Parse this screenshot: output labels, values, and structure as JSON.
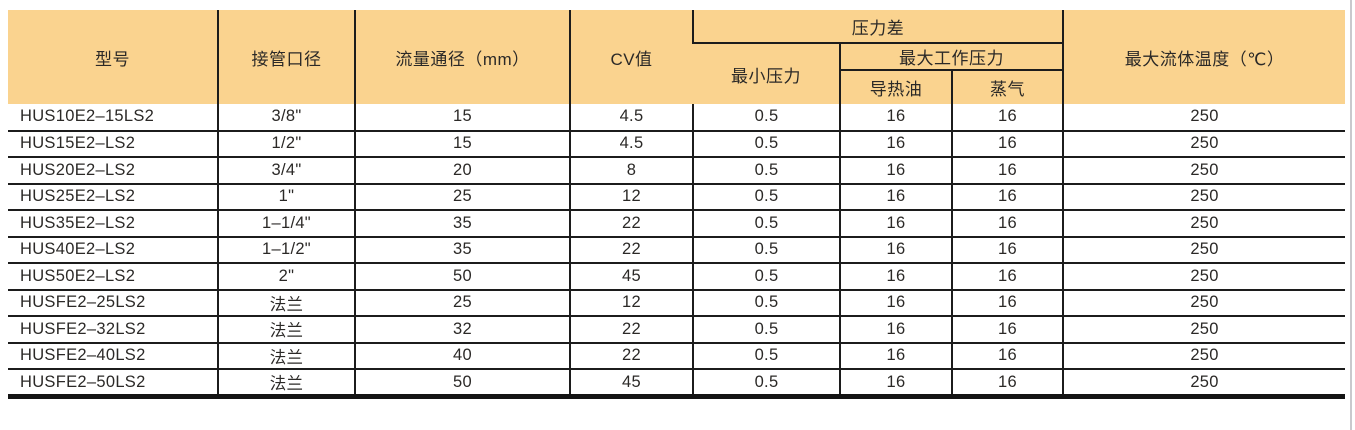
{
  "table": {
    "header": {
      "col_model": "型号",
      "col_pipe_size": "接管口径",
      "col_flow_diameter": "流量通径（mm）",
      "col_cv": "CV值",
      "group_pressure_diff": "压力差",
      "col_min_pressure": "最小压力",
      "group_max_working_pressure": "最大工作压力",
      "col_heat_oil": "导热油",
      "col_steam": "蒸气",
      "col_max_fluid_temp": "最大流体温度（℃）"
    },
    "column_keys": [
      "model",
      "pipe",
      "flow",
      "cv",
      "min_p",
      "oil",
      "steam",
      "temp"
    ],
    "rows": [
      {
        "model": "HUS10E2–15LS2",
        "pipe": "3/8\"",
        "flow": "15",
        "cv": "4.5",
        "min_p": "0.5",
        "oil": "16",
        "steam": "16",
        "temp": "250"
      },
      {
        "model": "HUS15E2–LS2",
        "pipe": "1/2\"",
        "flow": "15",
        "cv": "4.5",
        "min_p": "0.5",
        "oil": "16",
        "steam": "16",
        "temp": "250"
      },
      {
        "model": "HUS20E2–LS2",
        "pipe": "3/4\"",
        "flow": "20",
        "cv": "8",
        "min_p": "0.5",
        "oil": "16",
        "steam": "16",
        "temp": "250"
      },
      {
        "model": "HUS25E2–LS2",
        "pipe": "1\"",
        "flow": "25",
        "cv": "12",
        "min_p": "0.5",
        "oil": "16",
        "steam": "16",
        "temp": "250"
      },
      {
        "model": "HUS35E2–LS2",
        "pipe": "1–1/4\"",
        "flow": "35",
        "cv": "22",
        "min_p": "0.5",
        "oil": "16",
        "steam": "16",
        "temp": "250"
      },
      {
        "model": "HUS40E2–LS2",
        "pipe": "1–1/2\"",
        "flow": "35",
        "cv": "22",
        "min_p": "0.5",
        "oil": "16",
        "steam": "16",
        "temp": "250"
      },
      {
        "model": "HUS50E2–LS2",
        "pipe": "2\"",
        "flow": "50",
        "cv": "45",
        "min_p": "0.5",
        "oil": "16",
        "steam": "16",
        "temp": "250"
      },
      {
        "model": "HUSFE2–25LS2",
        "pipe": "法兰",
        "flow": "25",
        "cv": "12",
        "min_p": "0.5",
        "oil": "16",
        "steam": "16",
        "temp": "250"
      },
      {
        "model": "HUSFE2–32LS2",
        "pipe": "法兰",
        "flow": "32",
        "cv": "22",
        "min_p": "0.5",
        "oil": "16",
        "steam": "16",
        "temp": "250"
      },
      {
        "model": "HUSFE2–40LS2",
        "pipe": "法兰",
        "flow": "40",
        "cv": "22",
        "min_p": "0.5",
        "oil": "16",
        "steam": "16",
        "temp": "250"
      },
      {
        "model": "HUSFE2–50LS2",
        "pipe": "法兰",
        "flow": "50",
        "cv": "45",
        "min_p": "0.5",
        "oil": "16",
        "steam": "16",
        "temp": "250"
      }
    ],
    "rows_note_first": {
      "model": "HUS10E2–15LS2"
    },
    "colors": {
      "header_bg": "#FAD38F",
      "grid_line": "#1c1c1c",
      "thick_bottom_line": "#141414",
      "text": "#2b2927",
      "page_edge_line": "#c9c9cd"
    }
  }
}
